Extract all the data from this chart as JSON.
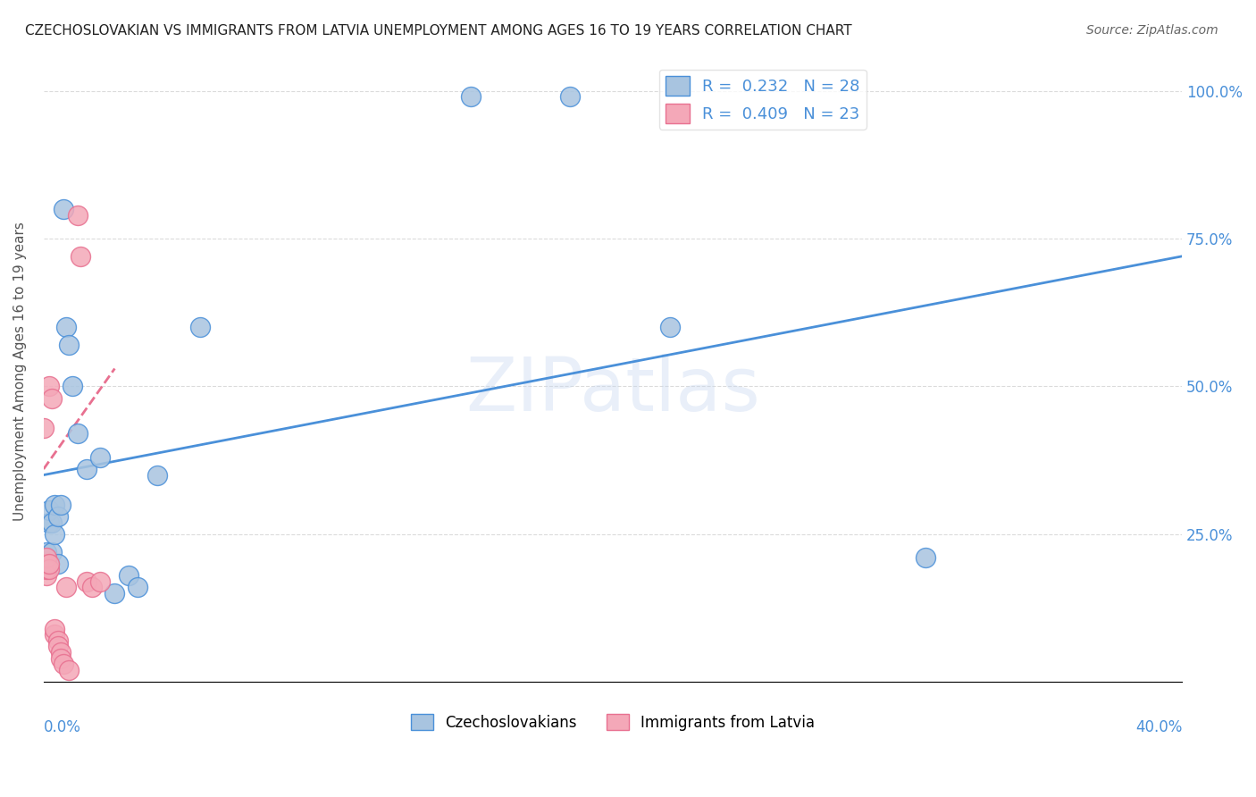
{
  "title": "CZECHOSLOVAKIAN VS IMMIGRANTS FROM LATVIA UNEMPLOYMENT AMONG AGES 16 TO 19 YEARS CORRELATION CHART",
  "source": "Source: ZipAtlas.com",
  "ylabel": "Unemployment Among Ages 16 to 19 years",
  "xlim": [
    0.0,
    0.4
  ],
  "ylim": [
    0.0,
    1.05
  ],
  "blue_label": "Czechoslovakians",
  "pink_label": "Immigrants from Latvia",
  "blue_R": "0.232",
  "blue_N": "28",
  "pink_R": "0.409",
  "pink_N": "23",
  "blue_color": "#A8C4E0",
  "pink_color": "#F4A8B8",
  "blue_line_color": "#4A90D9",
  "pink_line_color": "#E87090",
  "watermark": "ZIPatlas",
  "blue_dots": [
    [
      0.001,
      0.2
    ],
    [
      0.001,
      0.22
    ],
    [
      0.002,
      0.27
    ],
    [
      0.002,
      0.29
    ],
    [
      0.002,
      0.2
    ],
    [
      0.003,
      0.22
    ],
    [
      0.003,
      0.27
    ],
    [
      0.004,
      0.25
    ],
    [
      0.004,
      0.3
    ],
    [
      0.005,
      0.28
    ],
    [
      0.005,
      0.2
    ],
    [
      0.006,
      0.3
    ],
    [
      0.007,
      0.8
    ],
    [
      0.008,
      0.6
    ],
    [
      0.009,
      0.57
    ],
    [
      0.01,
      0.5
    ],
    [
      0.012,
      0.42
    ],
    [
      0.015,
      0.36
    ],
    [
      0.02,
      0.38
    ],
    [
      0.025,
      0.15
    ],
    [
      0.03,
      0.18
    ],
    [
      0.033,
      0.16
    ],
    [
      0.04,
      0.35
    ],
    [
      0.055,
      0.6
    ],
    [
      0.15,
      0.99
    ],
    [
      0.185,
      0.99
    ],
    [
      0.22,
      0.6
    ],
    [
      0.31,
      0.21
    ]
  ],
  "pink_dots": [
    [
      0.0,
      0.43
    ],
    [
      0.001,
      0.18
    ],
    [
      0.001,
      0.19
    ],
    [
      0.001,
      0.2
    ],
    [
      0.001,
      0.21
    ],
    [
      0.002,
      0.19
    ],
    [
      0.002,
      0.2
    ],
    [
      0.002,
      0.5
    ],
    [
      0.003,
      0.48
    ],
    [
      0.004,
      0.08
    ],
    [
      0.004,
      0.09
    ],
    [
      0.005,
      0.07
    ],
    [
      0.005,
      0.06
    ],
    [
      0.006,
      0.05
    ],
    [
      0.006,
      0.04
    ],
    [
      0.007,
      0.03
    ],
    [
      0.008,
      0.16
    ],
    [
      0.009,
      0.02
    ],
    [
      0.012,
      0.79
    ],
    [
      0.013,
      0.72
    ],
    [
      0.015,
      0.17
    ],
    [
      0.017,
      0.16
    ],
    [
      0.02,
      0.17
    ]
  ],
  "blue_line": {
    "x0": 0.0,
    "y0": 0.35,
    "x1": 0.4,
    "y1": 0.72
  },
  "pink_line": {
    "x0": 0.0,
    "y0": 0.36,
    "x1": 0.025,
    "y1": 0.53
  }
}
